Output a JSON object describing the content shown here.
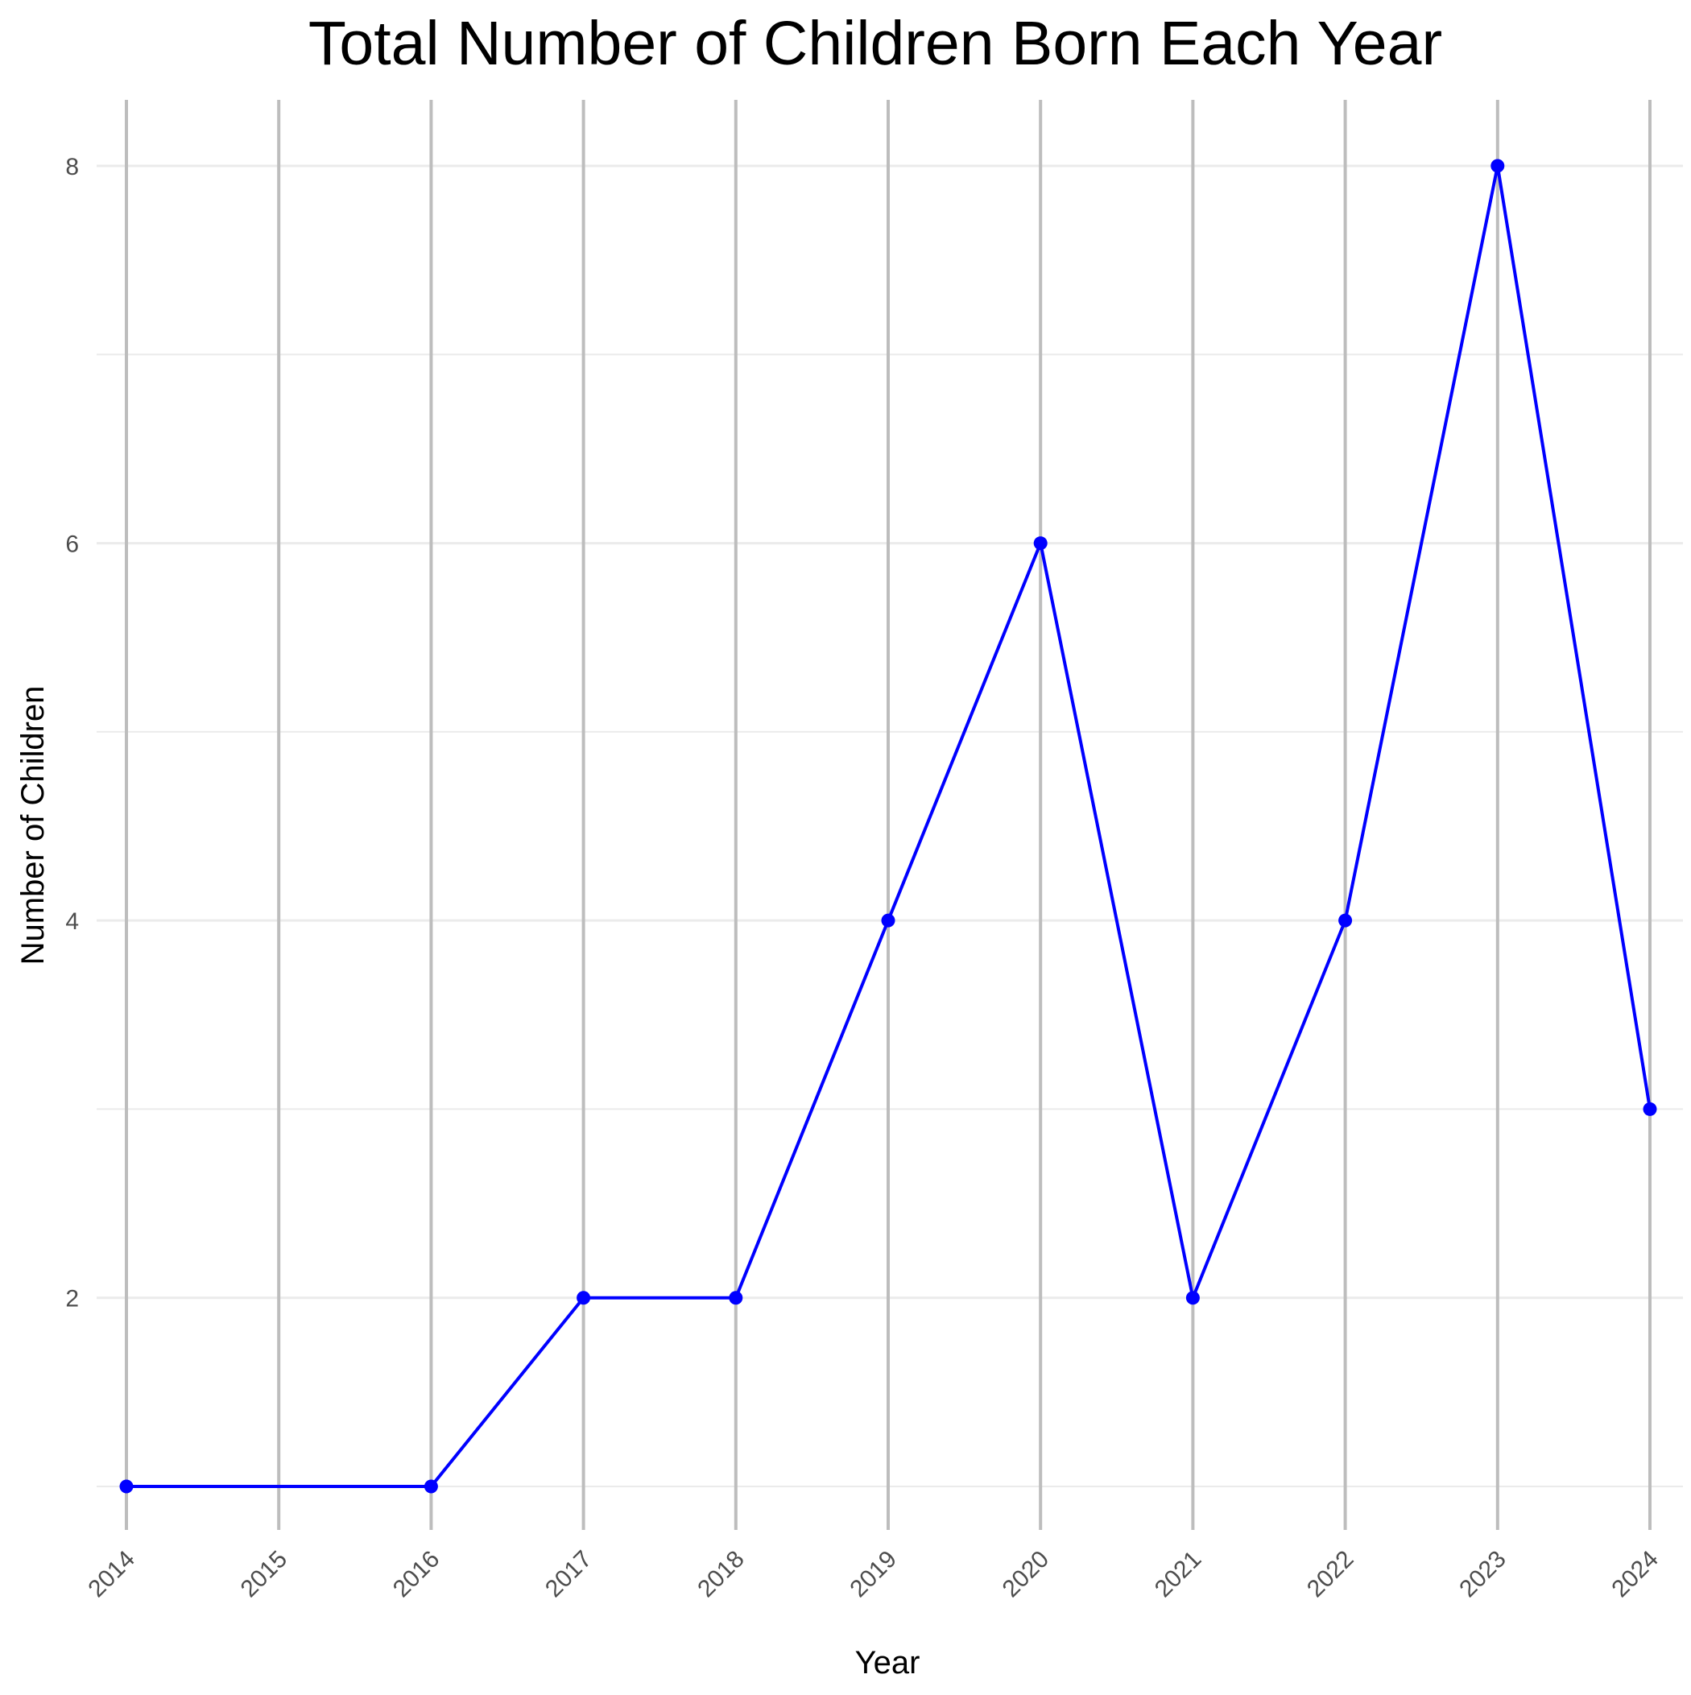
{
  "chart_data": {
    "type": "line",
    "title": "Total Number of Children Born Each Year",
    "xlabel": "Year",
    "ylabel": "Number of Children",
    "x": [
      2014,
      2016,
      2017,
      2018,
      2019,
      2020,
      2021,
      2022,
      2023,
      2024
    ],
    "series": [
      {
        "values": [
          1,
          1,
          2,
          2,
          4,
          6,
          2,
          4,
          8,
          3
        ],
        "color": "#0000ff"
      }
    ],
    "xticks": [
      "2014",
      "2015",
      "2016",
      "2017",
      "2018",
      "2019",
      "2020",
      "2021",
      "2022",
      "2023",
      "2024"
    ],
    "yticks": [
      "2",
      "4",
      "6",
      "8"
    ],
    "xlim": [
      2014,
      2024
    ],
    "ylim": [
      1,
      8
    ],
    "grid": true,
    "legend": "none",
    "colors": {
      "line": "#0000ff",
      "major_grid_x": "#bdbdbd",
      "major_grid_y": "#ebebeb",
      "minor_grid_y": "#ebebeb",
      "text": "#000000",
      "tick_text": "#4d4d4d"
    }
  }
}
